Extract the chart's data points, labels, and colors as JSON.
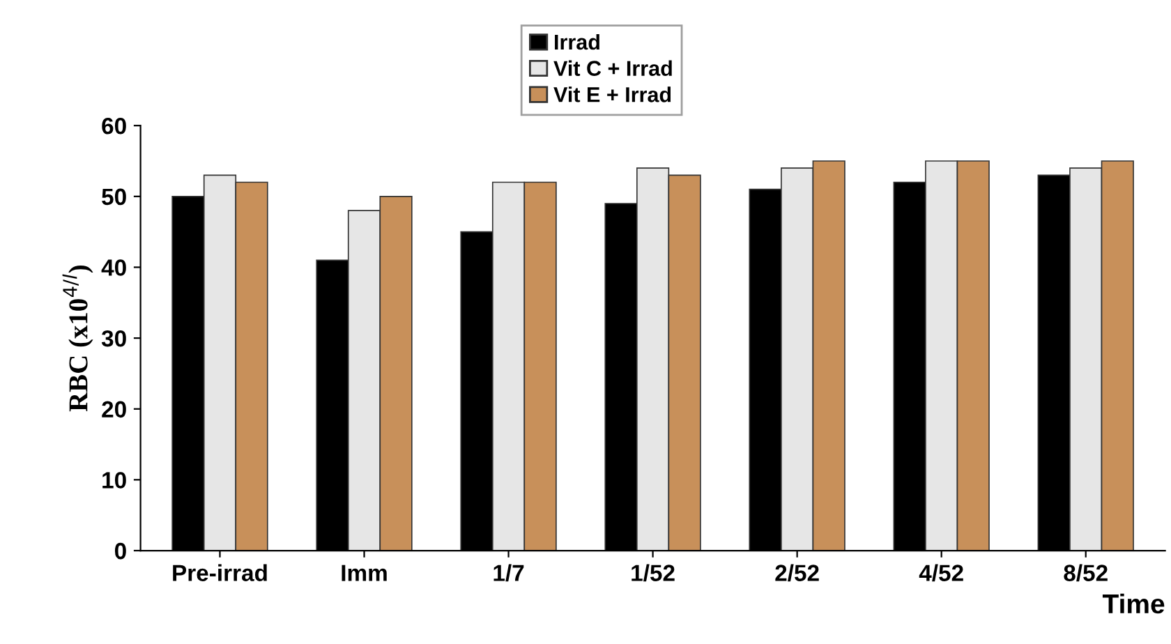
{
  "chart_data": {
    "type": "bar",
    "ylabel": "RBC (x10$^{4/l}$)",
    "xlabel": "Time",
    "categories": [
      "Pre-irrad",
      "Imm",
      "1/7",
      "1/52",
      "2/52",
      "4/52",
      "8/52"
    ],
    "series": [
      {
        "name": "Irrad",
        "color": "#000000",
        "values": [
          50,
          41,
          45,
          49,
          51,
          52,
          53
        ]
      },
      {
        "name": "Vit C + Irrad",
        "color": "#e6e6e6",
        "values": [
          53,
          48,
          52,
          54,
          54,
          55,
          54
        ]
      },
      {
        "name": "Vit E + Irrad",
        "color": "#c8905a",
        "values": [
          52,
          50,
          52,
          53,
          55,
          55,
          55
        ]
      }
    ],
    "ylim": [
      0,
      60
    ],
    "yticks": [
      0,
      10,
      20,
      30,
      40,
      50,
      60
    ],
    "grid": false,
    "legend": "top"
  }
}
